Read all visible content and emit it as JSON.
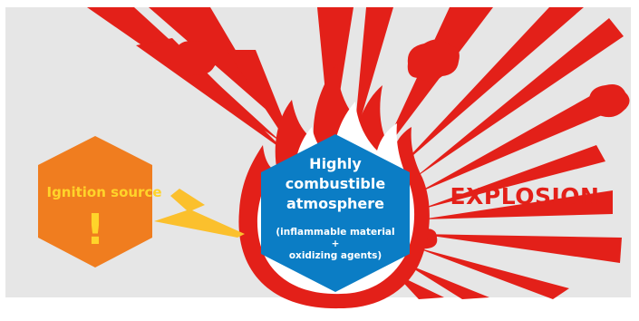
{
  "labels": {
    "ignition_source": "Ignition source",
    "exclamation": "!",
    "hazard_line_1": "Highly",
    "hazard_line_2": "combustible",
    "hazard_line_3": "atmosphere",
    "hazard_sub_line_1": "(inflammable material",
    "hazard_sub_line_2": "+",
    "hazard_sub_line_3": "oxidizing agents)",
    "explosion": "EXPLOSION"
  },
  "colors": {
    "background": "#e6e6e6",
    "explosion_red": "#e32019",
    "flame_inner": "#ffffff",
    "hazard_blue": "#0b7dc5",
    "ignition_orange": "#f07d1f",
    "spark_yellow": "#fbc02d",
    "label_yellow": "#ffd42a",
    "label_white": "#ffffff"
  },
  "icons": {
    "ignition_hexagon": "hexagon",
    "spark": "lightning-bolt",
    "fire": "flame",
    "hazard_hexagon": "hexagon",
    "explosion": "burst-rays"
  }
}
